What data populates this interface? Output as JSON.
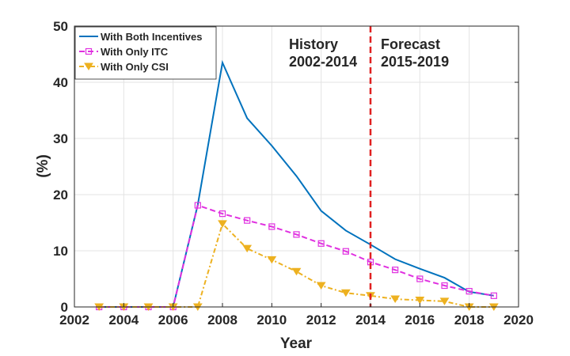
{
  "chart_data": {
    "type": "line",
    "xlabel": "Year",
    "ylabel": "(%)",
    "xlim": [
      2002,
      2020
    ],
    "ylim": [
      0,
      50
    ],
    "xticks": [
      2002,
      2004,
      2006,
      2008,
      2010,
      2012,
      2014,
      2016,
      2018,
      2020
    ],
    "yticks": [
      0,
      10,
      20,
      30,
      40,
      50
    ],
    "grid": true,
    "legend_position": "top-left",
    "x": [
      2003,
      2004,
      2005,
      2006,
      2007,
      2008,
      2009,
      2010,
      2011,
      2012,
      2013,
      2014,
      2015,
      2016,
      2017,
      2018,
      2019
    ],
    "series": [
      {
        "name": "With Both Incentives",
        "color": "#0072BD",
        "style": "solid",
        "marker": "none",
        "values": [
          0,
          0,
          0,
          0,
          18.2,
          43.5,
          33.6,
          28.7,
          23.3,
          17.1,
          13.6,
          11.1,
          8.5,
          6.8,
          5.2,
          2.7,
          2.0
        ]
      },
      {
        "name": "With Only ITC",
        "color": "#E030E0",
        "style": "dashed",
        "marker": "square",
        "values": [
          0,
          0,
          0,
          0,
          18.1,
          16.6,
          15.4,
          14.3,
          12.9,
          11.3,
          9.9,
          8.0,
          6.6,
          5.0,
          3.8,
          2.8,
          2.0
        ]
      },
      {
        "name": "With Only CSI",
        "color": "#EDB120",
        "style": "dashdot",
        "marker": "triangle-down",
        "values": [
          0,
          0,
          0,
          0,
          0,
          14.8,
          10.4,
          8.4,
          6.3,
          3.8,
          2.5,
          2.0,
          1.4,
          1.2,
          1.0,
          0,
          0
        ]
      }
    ],
    "divider": {
      "x": 2014,
      "color": "#E02020",
      "style": "dashed"
    },
    "annotations": [
      {
        "text": "History",
        "sub": "2002-2014"
      },
      {
        "text": "Forecast",
        "sub": "2015-2019"
      }
    ]
  }
}
